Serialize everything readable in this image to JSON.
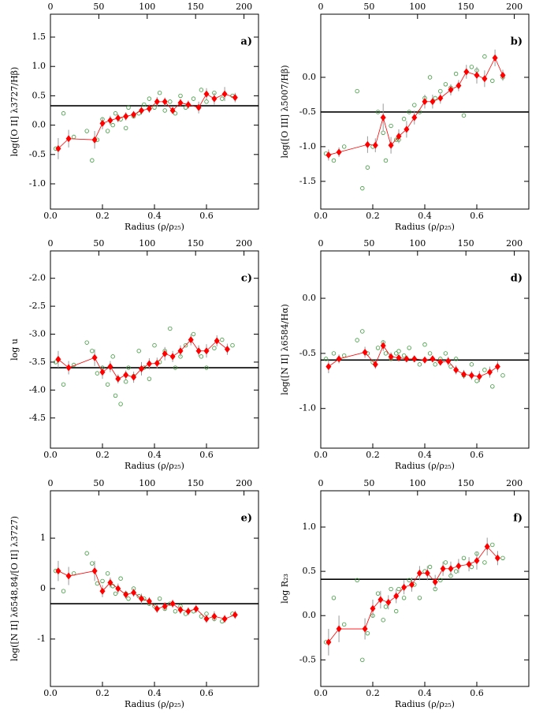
{
  "chart_data": [
    {
      "type": "scatter",
      "panel_label": "a)",
      "xlabel": "Radius (ρ/ρ₂₅)",
      "ylabel": "log([O II] λ3727/Hβ)",
      "xlim": [
        0,
        0.8
      ],
      "xticks": [
        {
          "value": 0,
          "label": "0.0"
        },
        0.2,
        0.4,
        0.6
      ],
      "x2lim": [
        0,
        215
      ],
      "x2ticks": [
        0,
        50,
        100,
        150,
        200
      ],
      "ylim": [
        -1.43,
        1.89
      ],
      "yticks": [
        1.5,
        {
          "value": 1,
          "label": "1.0"
        },
        0.5,
        {
          "value": 0,
          "label": "0.0"
        },
        -0.5,
        {
          "value": -1,
          "label": "-1.0"
        }
      ],
      "hline": 0.33,
      "hline_color": "#000000",
      "points": {
        "color": "#3a9a3a",
        "x": [
          0.02,
          0.05,
          0.09,
          0.14,
          0.16,
          0.18,
          0.2,
          0.22,
          0.24,
          0.25,
          0.27,
          0.29,
          0.3,
          0.32,
          0.34,
          0.36,
          0.38,
          0.4,
          0.42,
          0.44,
          0.46,
          0.48,
          0.5,
          0.52,
          0.55,
          0.58,
          0.6,
          0.63,
          0.66,
          0.7
        ],
        "y": [
          -0.4,
          0.2,
          -0.2,
          -0.1,
          -0.6,
          -0.25,
          0.1,
          -0.1,
          0.0,
          0.2,
          0.1,
          -0.05,
          0.3,
          0.15,
          0.2,
          0.35,
          0.45,
          0.3,
          0.55,
          0.25,
          0.4,
          0.2,
          0.5,
          0.3,
          0.45,
          0.6,
          0.4,
          0.55,
          0.45,
          0.5
        ]
      },
      "binned": {
        "color": "#ff0000",
        "x": [
          0.03,
          0.07,
          0.17,
          0.2,
          0.23,
          0.26,
          0.29,
          0.32,
          0.35,
          0.38,
          0.41,
          0.44,
          0.47,
          0.5,
          0.53,
          0.57,
          0.6,
          0.63,
          0.67,
          0.71
        ],
        "y": [
          -0.4,
          -0.23,
          -0.25,
          0.03,
          0.08,
          0.12,
          0.15,
          0.18,
          0.25,
          0.28,
          0.4,
          0.4,
          0.25,
          0.38,
          0.35,
          0.3,
          0.53,
          0.45,
          0.53,
          0.47
        ],
        "errors": [
          0.18,
          0.15,
          0.15,
          0.1,
          0.08,
          0.07,
          0.07,
          0.06,
          0.07,
          0.07,
          0.08,
          0.07,
          0.06,
          0.07,
          0.07,
          0.1,
          0.1,
          0.1,
          0.12,
          0.08
        ]
      }
    },
    {
      "type": "scatter",
      "panel_label": "b)",
      "xlabel": "Radius (ρ/ρ₂₅)",
      "ylabel": "log([O III] λ5007/Hβ)",
      "xlim": [
        0,
        0.8
      ],
      "xticks": [
        {
          "value": 0,
          "label": "0.0"
        },
        0.2,
        0.4,
        0.6
      ],
      "x2lim": [
        0,
        215
      ],
      "x2ticks": [
        0,
        50,
        100,
        150,
        200
      ],
      "ylim": [
        -1.9,
        0.91
      ],
      "yticks": [
        {
          "value": 0,
          "label": "0.0"
        },
        -0.5,
        {
          "value": -1,
          "label": "-1.0"
        },
        -1.5
      ],
      "hline": -0.5,
      "hline_color": "#000000",
      "points": {
        "color": "#3a9a3a",
        "x": [
          0.02,
          0.05,
          0.09,
          0.14,
          0.16,
          0.18,
          0.2,
          0.22,
          0.24,
          0.25,
          0.27,
          0.29,
          0.3,
          0.32,
          0.34,
          0.36,
          0.38,
          0.4,
          0.42,
          0.44,
          0.46,
          0.48,
          0.5,
          0.52,
          0.55,
          0.58,
          0.6,
          0.63,
          0.66,
          0.7
        ],
        "y": [
          -1.1,
          -1.2,
          -1.0,
          -0.2,
          -1.6,
          -1.3,
          -1.0,
          -0.5,
          -0.8,
          -1.2,
          -0.7,
          -0.9,
          -0.9,
          -0.6,
          -0.5,
          -0.4,
          -0.5,
          -0.3,
          0.0,
          -0.3,
          -0.2,
          -0.1,
          -0.15,
          0.05,
          -0.55,
          0.15,
          0.1,
          0.3,
          -0.05,
          0.0
        ]
      },
      "binned": {
        "color": "#ff0000",
        "x": [
          0.03,
          0.07,
          0.18,
          0.21,
          0.24,
          0.27,
          0.3,
          0.33,
          0.36,
          0.4,
          0.43,
          0.46,
          0.5,
          0.53,
          0.56,
          0.6,
          0.63,
          0.67,
          0.7
        ],
        "y": [
          -1.12,
          -1.08,
          -0.97,
          -0.98,
          -0.58,
          -0.98,
          -0.85,
          -0.75,
          -0.58,
          -0.35,
          -0.35,
          -0.3,
          -0.18,
          -0.12,
          0.08,
          0.03,
          -0.02,
          0.28,
          0.03
        ],
        "errors": [
          0.08,
          0.07,
          0.12,
          0.1,
          0.2,
          0.12,
          0.1,
          0.12,
          0.1,
          0.1,
          0.1,
          0.08,
          0.08,
          0.08,
          0.1,
          0.12,
          0.12,
          0.12,
          0.08
        ]
      }
    },
    {
      "type": "scatter",
      "panel_label": "c)",
      "xlabel": "Radius (ρ/ρ₂₅)",
      "ylabel": "log u",
      "xlim": [
        0,
        0.8
      ],
      "xticks": [
        {
          "value": 0,
          "label": "0.0"
        },
        0.2,
        0.4,
        0.6
      ],
      "x2lim": [
        0,
        215
      ],
      "x2ticks": [
        0,
        50,
        100,
        150,
        200
      ],
      "ylim": [
        -5.04,
        -1.51
      ],
      "yticks": [
        {
          "value": -2,
          "label": "-2.0"
        },
        -2.5,
        {
          "value": -3,
          "label": "-3.0"
        },
        -3.5,
        {
          "value": -4,
          "label": "-4.0"
        },
        -4.5
      ],
      "hline": -3.6,
      "hline_color": "#000000",
      "points": {
        "color": "#3a9a3a",
        "x": [
          0.02,
          0.05,
          0.09,
          0.14,
          0.16,
          0.18,
          0.2,
          0.22,
          0.24,
          0.25,
          0.27,
          0.29,
          0.3,
          0.32,
          0.34,
          0.36,
          0.38,
          0.4,
          0.42,
          0.44,
          0.46,
          0.48,
          0.5,
          0.52,
          0.55,
          0.58,
          0.6,
          0.63,
          0.66,
          0.7
        ],
        "y": [
          -3.5,
          -3.9,
          -3.55,
          -3.15,
          -3.3,
          -3.7,
          -3.6,
          -3.9,
          -3.4,
          -4.1,
          -4.25,
          -3.85,
          -3.6,
          -3.75,
          -3.3,
          -3.6,
          -3.8,
          -3.2,
          -3.5,
          -3.3,
          -2.9,
          -3.6,
          -3.4,
          -3.2,
          -3.0,
          -3.4,
          -3.6,
          -3.25,
          -3.1,
          -3.2
        ]
      },
      "binned": {
        "color": "#ff0000",
        "x": [
          0.03,
          0.07,
          0.17,
          0.2,
          0.23,
          0.26,
          0.29,
          0.32,
          0.35,
          0.38,
          0.41,
          0.44,
          0.47,
          0.5,
          0.54,
          0.57,
          0.6,
          0.64,
          0.68
        ],
        "y": [
          -3.45,
          -3.6,
          -3.42,
          -3.68,
          -3.58,
          -3.8,
          -3.73,
          -3.77,
          -3.62,
          -3.53,
          -3.52,
          -3.35,
          -3.4,
          -3.3,
          -3.1,
          -3.3,
          -3.3,
          -3.12,
          -3.27
        ],
        "errors": [
          0.15,
          0.12,
          0.15,
          0.12,
          0.1,
          0.08,
          0.08,
          0.1,
          0.12,
          0.1,
          0.1,
          0.12,
          0.1,
          0.1,
          0.1,
          0.1,
          0.12,
          0.1,
          0.1
        ]
      }
    },
    {
      "type": "scatter",
      "panel_label": "d)",
      "xlabel": "Radius (ρ/ρ₂₅)",
      "ylabel": "log([N II] λ6584/Hα)",
      "xlim": [
        0,
        0.8
      ],
      "xticks": [
        {
          "value": 0,
          "label": "0.0"
        },
        0.2,
        0.4,
        0.6
      ],
      "x2lim": [
        0,
        215
      ],
      "x2ticks": [
        0,
        50,
        100,
        150,
        200
      ],
      "ylim": [
        -1.36,
        0.43
      ],
      "yticks": [
        {
          "value": 0,
          "label": "0.0"
        },
        -0.5,
        {
          "value": -1,
          "label": "-1.0"
        }
      ],
      "hline": -0.56,
      "hline_color": "#000000",
      "points": {
        "color": "#3a9a3a",
        "x": [
          0.02,
          0.05,
          0.09,
          0.14,
          0.16,
          0.18,
          0.2,
          0.22,
          0.24,
          0.25,
          0.27,
          0.29,
          0.3,
          0.32,
          0.34,
          0.36,
          0.38,
          0.4,
          0.42,
          0.44,
          0.46,
          0.48,
          0.5,
          0.52,
          0.55,
          0.58,
          0.6,
          0.63,
          0.66,
          0.7
        ],
        "y": [
          -0.55,
          -0.5,
          -0.52,
          -0.38,
          -0.3,
          -0.5,
          -0.58,
          -0.45,
          -0.4,
          -0.5,
          -0.55,
          -0.5,
          -0.48,
          -0.52,
          -0.45,
          -0.55,
          -0.6,
          -0.42,
          -0.5,
          -0.6,
          -0.55,
          -0.5,
          -0.62,
          -0.55,
          -0.7,
          -0.6,
          -0.75,
          -0.65,
          -0.8,
          -0.7
        ]
      },
      "binned": {
        "color": "#ff0000",
        "x": [
          0.03,
          0.07,
          0.17,
          0.21,
          0.24,
          0.27,
          0.3,
          0.33,
          0.36,
          0.4,
          0.43,
          0.46,
          0.49,
          0.52,
          0.55,
          0.58,
          0.61,
          0.65,
          0.68
        ],
        "y": [
          -0.62,
          -0.55,
          -0.49,
          -0.6,
          -0.43,
          -0.53,
          -0.54,
          -0.55,
          -0.55,
          -0.56,
          -0.55,
          -0.58,
          -0.57,
          -0.65,
          -0.69,
          -0.7,
          -0.71,
          -0.67,
          -0.62
        ],
        "errors": [
          0.06,
          0.04,
          0.05,
          0.04,
          0.05,
          0.04,
          0.03,
          0.03,
          0.03,
          0.03,
          0.03,
          0.03,
          0.04,
          0.04,
          0.04,
          0.04,
          0.05,
          0.05,
          0.05
        ]
      }
    },
    {
      "type": "scatter",
      "panel_label": "e)",
      "xlabel": "Radius (ρ/ρ₂₅)",
      "ylabel": "log([N II] λ6548,84/[O II] λ3727)",
      "xlim": [
        0,
        0.8
      ],
      "xticks": [
        {
          "value": 0,
          "label": "0.0"
        },
        0.2,
        0.4,
        0.6
      ],
      "x2lim": [
        0,
        215
      ],
      "x2ticks": [
        0,
        50,
        100,
        150,
        200
      ],
      "ylim": [
        -1.94,
        1.94
      ],
      "yticks": [
        1,
        0,
        -1
      ],
      "hline": -0.3,
      "hline_color": "#000000",
      "points": {
        "color": "#3a9a3a",
        "x": [
          0.02,
          0.05,
          0.09,
          0.14,
          0.16,
          0.18,
          0.2,
          0.22,
          0.24,
          0.25,
          0.27,
          0.29,
          0.3,
          0.32,
          0.34,
          0.36,
          0.38,
          0.4,
          0.42,
          0.44,
          0.46,
          0.48,
          0.5,
          0.52,
          0.55,
          0.58,
          0.6,
          0.63,
          0.66,
          0.7
        ],
        "y": [
          0.35,
          -0.05,
          0.3,
          0.7,
          0.5,
          0.1,
          0.15,
          0.3,
          0.05,
          -0.1,
          0.2,
          -0.1,
          -0.2,
          0.0,
          -0.15,
          -0.2,
          -0.3,
          -0.35,
          -0.2,
          -0.4,
          -0.3,
          -0.45,
          -0.35,
          -0.5,
          -0.45,
          -0.55,
          -0.5,
          -0.6,
          -0.65,
          -0.5
        ]
      },
      "binned": {
        "color": "#ff0000",
        "x": [
          0.03,
          0.07,
          0.17,
          0.2,
          0.23,
          0.26,
          0.29,
          0.32,
          0.35,
          0.38,
          0.41,
          0.44,
          0.47,
          0.5,
          0.53,
          0.56,
          0.6,
          0.63,
          0.67,
          0.71
        ],
        "y": [
          0.35,
          0.25,
          0.35,
          -0.05,
          0.12,
          0.0,
          -0.12,
          -0.08,
          -0.2,
          -0.25,
          -0.4,
          -0.35,
          -0.3,
          -0.42,
          -0.45,
          -0.4,
          -0.6,
          -0.55,
          -0.6,
          -0.52
        ],
        "errors": [
          0.2,
          0.18,
          0.2,
          0.12,
          0.1,
          0.1,
          0.08,
          0.08,
          0.1,
          0.08,
          0.08,
          0.08,
          0.08,
          0.08,
          0.08,
          0.08,
          0.08,
          0.1,
          0.08,
          0.08
        ]
      }
    },
    {
      "type": "scatter",
      "panel_label": "f)",
      "xlabel": "Radius (ρ/ρ₂₅)",
      "ylabel": "log R₂₃",
      "xlim": [
        0,
        0.8
      ],
      "xticks": [
        {
          "value": 0,
          "label": "0.0"
        },
        0.2,
        0.4,
        0.6
      ],
      "x2lim": [
        0,
        215
      ],
      "x2ticks": [
        0,
        50,
        100,
        150,
        200
      ],
      "ylim": [
        -0.8,
        1.41
      ],
      "yticks": [
        {
          "value": 1,
          "label": "1.0"
        },
        0.5,
        {
          "value": 0,
          "label": "0.0"
        },
        -0.5
      ],
      "hline": 0.41,
      "hline_color": "#000000",
      "points": {
        "color": "#3a9a3a",
        "x": [
          0.02,
          0.05,
          0.09,
          0.14,
          0.16,
          0.18,
          0.2,
          0.22,
          0.24,
          0.25,
          0.27,
          0.29,
          0.3,
          0.32,
          0.34,
          0.36,
          0.38,
          0.4,
          0.42,
          0.44,
          0.46,
          0.48,
          0.5,
          0.52,
          0.55,
          0.58,
          0.6,
          0.63,
          0.66,
          0.7
        ],
        "y": [
          -0.3,
          0.2,
          -0.1,
          0.4,
          -0.5,
          -0.2,
          0.0,
          0.25,
          -0.05,
          0.1,
          0.3,
          0.05,
          0.3,
          0.2,
          0.4,
          0.35,
          0.2,
          0.5,
          0.55,
          0.3,
          0.4,
          0.6,
          0.45,
          0.5,
          0.65,
          0.55,
          0.7,
          0.6,
          0.8,
          0.65
        ]
      },
      "binned": {
        "color": "#ff0000",
        "x": [
          0.03,
          0.07,
          0.17,
          0.2,
          0.23,
          0.26,
          0.29,
          0.32,
          0.35,
          0.38,
          0.41,
          0.44,
          0.47,
          0.5,
          0.53,
          0.57,
          0.6,
          0.64,
          0.68
        ],
        "y": [
          -0.3,
          -0.15,
          -0.15,
          0.08,
          0.18,
          0.15,
          0.22,
          0.32,
          0.35,
          0.48,
          0.48,
          0.38,
          0.53,
          0.53,
          0.56,
          0.58,
          0.62,
          0.78,
          0.65
        ],
        "errors": [
          0.15,
          0.15,
          0.12,
          0.1,
          0.1,
          0.08,
          0.08,
          0.08,
          0.08,
          0.08,
          0.08,
          0.08,
          0.08,
          0.08,
          0.08,
          0.08,
          0.1,
          0.1,
          0.08
        ]
      }
    }
  ]
}
